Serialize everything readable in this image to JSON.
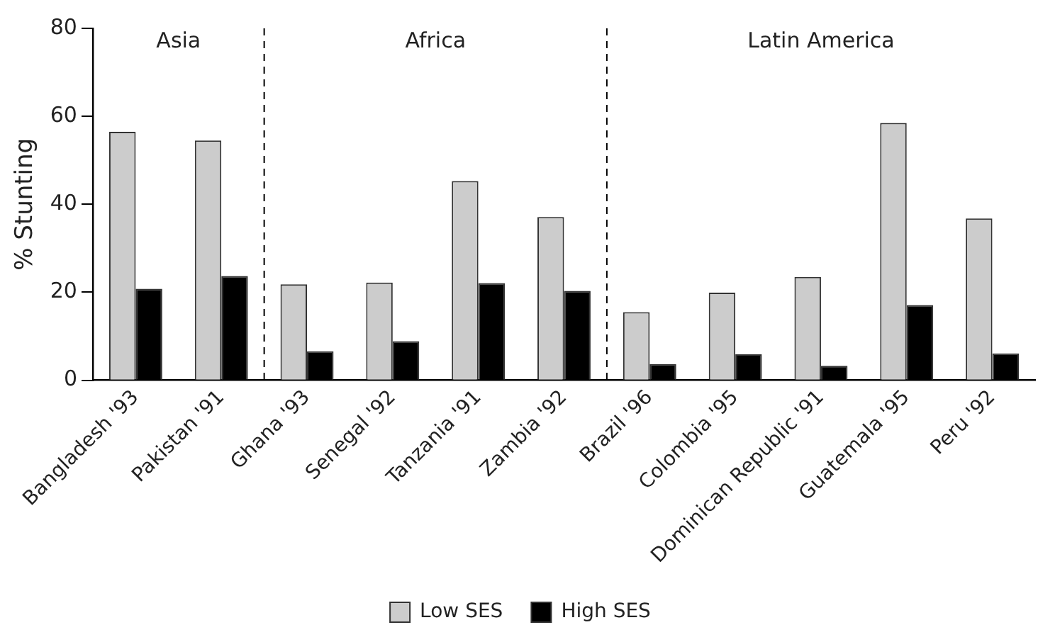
{
  "chart_data": {
    "type": "bar",
    "ylabel": "% Stunting",
    "categories": [
      "Bangladesh '93",
      "Pakistan '91",
      "Ghana '93",
      "Senegal '92",
      "Tanzania '91",
      "Zambia '92",
      "Brazil '96",
      "Colombia '95",
      "Dominican Republic '91",
      "Guatemala '95",
      "Peru '92"
    ],
    "series": [
      {
        "name": "Low SES",
        "color": "#cccccc",
        "values": [
          56.5,
          54.5,
          21.8,
          22.2,
          45.3,
          37.1,
          15.5,
          19.9,
          23.5,
          58.5,
          36.8
        ]
      },
      {
        "name": "High SES",
        "color": "#000000",
        "values": [
          20.8,
          23.7,
          6.6,
          8.9,
          22.1,
          20.3,
          3.7,
          5.9,
          3.3,
          17.1,
          6.1
        ]
      }
    ],
    "ylim": [
      0,
      80
    ],
    "yticks": [
      0,
      20,
      40,
      60,
      80
    ],
    "grid": false,
    "legend": "bottom",
    "annotations": [
      "Asia",
      "Africa",
      "Latin America"
    ]
  }
}
